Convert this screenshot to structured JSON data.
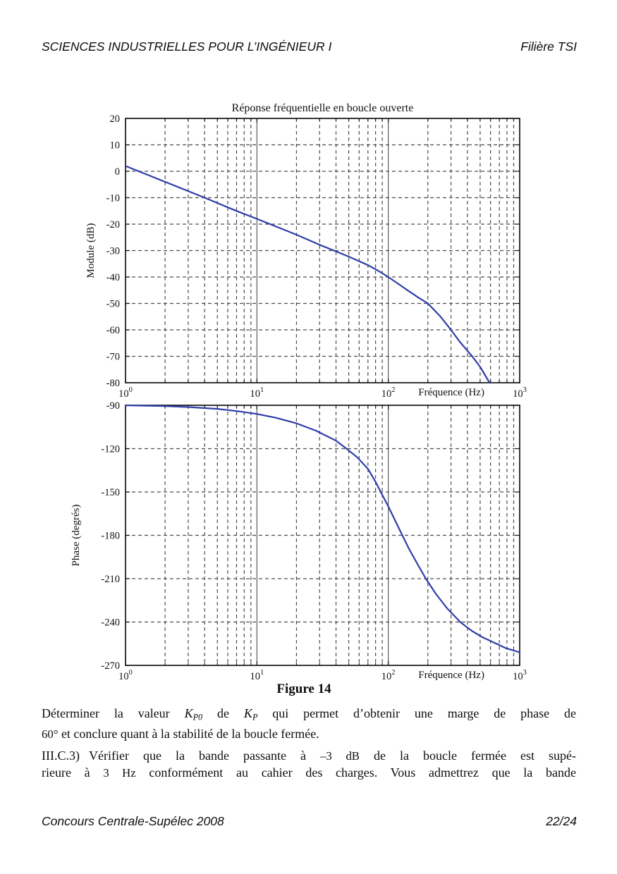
{
  "page": {
    "header": {
      "left": "SCIENCES INDUSTRIELLES POUR L’INGÉNIEUR I",
      "right": "Filière TSI"
    },
    "footer": {
      "left": "Concours Centrale-Supélec 2008",
      "right": "22/24"
    }
  },
  "figure": {
    "caption": "Figure 14"
  },
  "body": {
    "p1": {
      "l1": {
        "t1": "Déterminer la valeur ",
        "m1": "K",
        "m1s": "P0",
        "t2": " de ",
        "m2": "K",
        "m2s": "P",
        "t3": " qui permet d’obtenir une marge de phase de"
      },
      "l2": {
        "v": "60°",
        "t": " et conclure quant à la stabilité de la boucle fermée."
      }
    },
    "p2": {
      "label": "III.C.3)",
      "l1": {
        "t1": "Vérifier que la bande passante à ",
        "v1": "–3 dB",
        "t2": " de la boucle fermée est supé-"
      },
      "l2": {
        "t1": "rieure à ",
        "v1": "3 Hz",
        "t2": " conformément au cahier des charges. Vous admettrez que la bande"
      }
    }
  },
  "chart_data": [
    {
      "type": "line",
      "id": "magnitude",
      "title": "Réponse fréquentielle en boucle ouverte",
      "xlabel": "Fréquence (Hz)",
      "ylabel": "Module (dB)",
      "xscale": "log",
      "xlim": [
        1,
        1000
      ],
      "ylim": [
        -80,
        20
      ],
      "xticks": [
        1,
        10,
        100,
        1000
      ],
      "xtick_labels": [
        "10^0",
        "10^1",
        "10^2",
        "10^3"
      ],
      "yticks": [
        20,
        10,
        0,
        -10,
        -20,
        -30,
        -40,
        -50,
        -60,
        -70,
        -80
      ],
      "grid": true,
      "legend": "none",
      "series": [
        {
          "name": "module",
          "color": "#2f3da8",
          "points": [
            [
              1,
              2
            ],
            [
              1.5,
              -1.5
            ],
            [
              2,
              -4
            ],
            [
              3,
              -7.5
            ],
            [
              4,
              -10
            ],
            [
              5,
              -12
            ],
            [
              7,
              -15
            ],
            [
              10,
              -18
            ],
            [
              15,
              -21.5
            ],
            [
              20,
              -24
            ],
            [
              30,
              -27.8
            ],
            [
              40,
              -30.3
            ],
            [
              50,
              -32.3
            ],
            [
              70,
              -35.5
            ],
            [
              85,
              -37.8
            ],
            [
              100,
              -40
            ],
            [
              120,
              -42.7
            ],
            [
              140,
              -45
            ],
            [
              170,
              -47.8
            ],
            [
              200,
              -50
            ],
            [
              250,
              -55
            ],
            [
              300,
              -60
            ],
            [
              350,
              -64.5
            ],
            [
              435,
              -70
            ],
            [
              500,
              -74
            ],
            [
              590,
              -80
            ]
          ]
        }
      ]
    },
    {
      "type": "line",
      "id": "phase",
      "title": "",
      "xlabel": "Fréquence (Hz)",
      "ylabel": "Phase (degrés)",
      "xscale": "log",
      "xlim": [
        1,
        1000
      ],
      "ylim": [
        -270,
        -90
      ],
      "xticks": [
        1,
        10,
        100,
        1000
      ],
      "xtick_labels": [
        "10^0",
        "10^1",
        "10^2",
        "10^3"
      ],
      "yticks": [
        -90,
        -120,
        -150,
        -180,
        -210,
        -240,
        -270
      ],
      "grid": true,
      "legend": "none",
      "series": [
        {
          "name": "phase",
          "color": "#2f3da8",
          "points": [
            [
              1,
              -90
            ],
            [
              2,
              -90.6
            ],
            [
              3,
              -91.2
            ],
            [
              5,
              -92.5
            ],
            [
              7,
              -94
            ],
            [
              10,
              -96
            ],
            [
              14,
              -98.7
            ],
            [
              20,
              -102.5
            ],
            [
              28,
              -107.5
            ],
            [
              40,
              -114.5
            ],
            [
              48,
              -120
            ],
            [
              58,
              -126
            ],
            [
              70,
              -134
            ],
            [
              80,
              -143
            ],
            [
              90,
              -152
            ],
            [
              100,
              -160
            ],
            [
              113,
              -170
            ],
            [
              128,
              -180
            ],
            [
              145,
              -190
            ],
            [
              167,
              -200
            ],
            [
              193,
              -210
            ],
            [
              230,
              -220.5
            ],
            [
              280,
              -230.5
            ],
            [
              353,
              -240
            ],
            [
              430,
              -246
            ],
            [
              520,
              -250.5
            ],
            [
              630,
              -254
            ],
            [
              780,
              -258
            ],
            [
              1000,
              -261
            ]
          ]
        }
      ]
    }
  ],
  "style": {
    "curve_color": "#2f3da8",
    "grid_color": "#4d4d4d",
    "axis_color": "#151515",
    "text_color": "#111111"
  }
}
